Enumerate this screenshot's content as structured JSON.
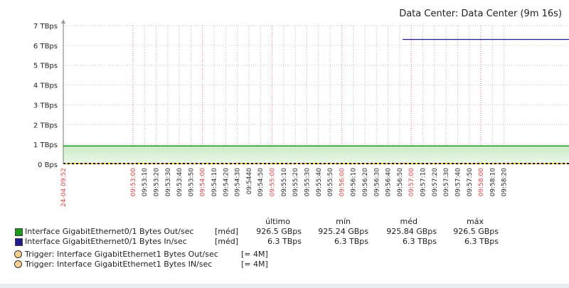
{
  "chart_data": {
    "type": "area",
    "title": "Data Center: Data Center (9m 16s)",
    "ylim": [
      0,
      7
    ],
    "y_tick_labels": [
      "0 Bps",
      "1 TBps",
      "2 TBps",
      "3 TBps",
      "4 TBps",
      "5 TBps",
      "6 TBps",
      "7 TBps"
    ],
    "x_range": [
      "09:52:00",
      "09:59:16"
    ],
    "x_tick_labels": [
      {
        "label": "24-04 09:52",
        "sec": 0,
        "highlight": true
      },
      {
        "label": "09:53:00",
        "sec": 60,
        "highlight": true
      },
      {
        "label": "09:53:10",
        "sec": 70
      },
      {
        "label": "09:53:20",
        "sec": 80
      },
      {
        "label": "09:53:30",
        "sec": 90
      },
      {
        "label": "09:53:40",
        "sec": 100
      },
      {
        "label": "09:53:50",
        "sec": 110
      },
      {
        "label": "09:54:00",
        "sec": 120,
        "highlight": true
      },
      {
        "label": "09:54:10",
        "sec": 130
      },
      {
        "label": "09:54:20",
        "sec": 140
      },
      {
        "label": "09:54:30",
        "sec": 150
      },
      {
        "label": "09:5440",
        "sec": 160
      },
      {
        "label": "09:54:50",
        "sec": 170
      },
      {
        "label": "09:55:00",
        "sec": 180,
        "highlight": true
      },
      {
        "label": "09:55:10",
        "sec": 190
      },
      {
        "label": "09:55:20",
        "sec": 200
      },
      {
        "label": "09:55:30",
        "sec": 210
      },
      {
        "label": "09:55:40",
        "sec": 220
      },
      {
        "label": "09:55:50",
        "sec": 230
      },
      {
        "label": "09:56:00",
        "sec": 240,
        "highlight": true
      },
      {
        "label": "09:56:10",
        "sec": 250
      },
      {
        "label": "09:56:20",
        "sec": 260
      },
      {
        "label": "09:56:30",
        "sec": 270
      },
      {
        "label": "09:56:40",
        "sec": 280
      },
      {
        "label": "09:56:50",
        "sec": 290
      },
      {
        "label": "09:57:00",
        "sec": 300,
        "highlight": true
      },
      {
        "label": "09:57:10",
        "sec": 310
      },
      {
        "label": "09:57:20",
        "sec": 320
      },
      {
        "label": "09:57:30",
        "sec": 330
      },
      {
        "label": "09:57:40",
        "sec": 340
      },
      {
        "label": "09:57:50",
        "sec": 350
      },
      {
        "label": "09:58:00",
        "sec": 360,
        "highlight": true
      },
      {
        "label": "09:58:10",
        "sec": 370
      },
      {
        "label": "09:58:20",
        "sec": 380
      }
    ],
    "highlight_color": "#d64545",
    "grid": true,
    "series": [
      {
        "name": "Interface GigabitEthernet0/1 Bytes Out/sec",
        "fn": "[méd]",
        "color": "#1a9a1a",
        "fill": "#c9ebc3",
        "points": [
          [
            0,
            0.926
          ],
          [
            436,
            0.926
          ]
        ],
        "stats": {
          "last": "926.5 GBps",
          "min": "925.24 GBps",
          "avg": "925.84 GBps",
          "max": "926.5 GBps"
        }
      },
      {
        "name": "Interface GigabitEthernet0/1 Bytes In/sec",
        "fn": "[méd]",
        "color": "#1c1c8f",
        "points": [
          [
            292.5,
            6.3
          ],
          [
            436,
            6.3
          ]
        ],
        "stats": {
          "last": "6.3 TBps",
          "min": "6.3 TBps",
          "avg": "6.3 TBps",
          "max": "6.3 TBps"
        }
      }
    ],
    "triggers": [
      {
        "name": "Trigger: Interface GigabitEthernet1 Bytes Out/sec",
        "cond": "[= 4M]",
        "color": "#f6d08f"
      },
      {
        "name": "Trigger: Interface GigabitEthernet1 Bytes IN/sec",
        "cond": "[= 4M]",
        "color": "#f6d08f"
      }
    ]
  },
  "legend_headers": {
    "last": "último",
    "min": "mín",
    "avg": "méd",
    "max": "máx"
  }
}
